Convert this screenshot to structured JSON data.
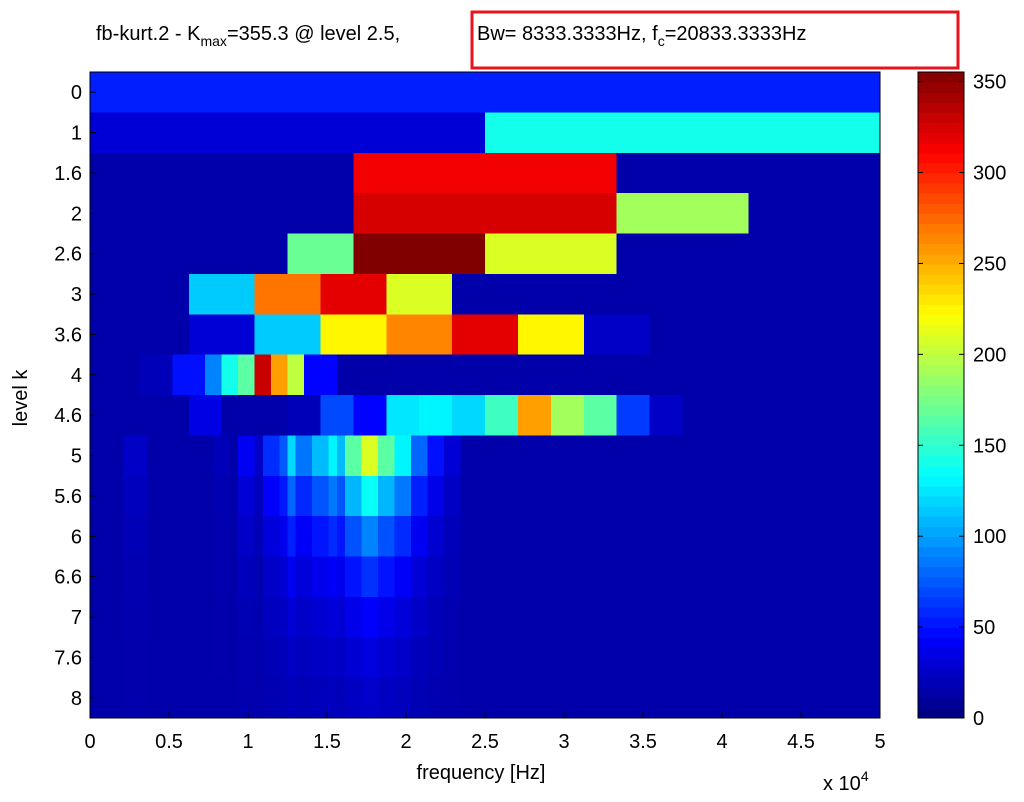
{
  "title": {
    "prefix": "fb-kurt.2 - K",
    "kmax_sub": "max",
    "kmax_value": "=355.3 @ level 2.5,",
    "bw": "Bw= 8333.3333Hz, f",
    "fc_sub": "c",
    "fc_value": "=20833.3333Hz"
  },
  "colors": {
    "highlight_box": "#e8141c",
    "colormap": "jet"
  },
  "chart_data": {
    "type": "heatmap",
    "xlabel": "frequency [Hz]",
    "ylabel": "level k",
    "x_exponent_label": "x 10",
    "x_exponent_power": "4",
    "xlim": [
      0,
      50000
    ],
    "x_ticks": [
      0,
      5000,
      10000,
      15000,
      20000,
      25000,
      30000,
      35000,
      40000,
      45000,
      50000
    ],
    "x_tick_labels": [
      "0",
      "0.5",
      "1",
      "1.5",
      "2",
      "2.5",
      "3",
      "3.5",
      "4",
      "4.5",
      "5"
    ],
    "y_tick_labels": [
      "0",
      "1",
      "1.6",
      "2",
      "2.6",
      "3",
      "3.6",
      "4",
      "4.6",
      "5",
      "5.6",
      "6",
      "6.6",
      "7",
      "7.6",
      "8"
    ],
    "colorbar": {
      "clim": [
        0,
        355.3
      ],
      "ticks": [
        0,
        50,
        100,
        150,
        200,
        250,
        300,
        350
      ],
      "tick_labels": [
        "0",
        "50",
        "100",
        "150",
        "200",
        "250",
        "300",
        "350"
      ]
    },
    "rows": [
      {
        "level": "0",
        "values": [
          55
        ]
      },
      {
        "level": "1",
        "values": [
          30,
          140
        ]
      },
      {
        "level": "1.6",
        "values": [
          15,
          15,
          315,
          315,
          15,
          15
        ]
      },
      {
        "level": "2",
        "values": [
          15,
          15,
          325,
          325,
          190,
          15
        ]
      },
      {
        "level": "2.6",
        "values": [
          15,
          15,
          15,
          170,
          355,
          355,
          210,
          210,
          15,
          15,
          15,
          15
        ]
      },
      {
        "level": "3",
        "values": [
          15,
          15,
          15,
          115,
          115,
          270,
          270,
          320,
          320,
          210,
          210,
          15,
          15,
          15,
          15,
          15,
          15,
          15,
          15,
          15,
          15,
          15,
          15,
          15
        ]
      },
      {
        "level": "3.6",
        "values": [
          15,
          15,
          15,
          30,
          30,
          115,
          115,
          225,
          225,
          265,
          265,
          320,
          320,
          225,
          225,
          25,
          25,
          15,
          15,
          15,
          15,
          15,
          15,
          15
        ]
      },
      {
        "level": "4",
        "values": [
          15,
          15,
          15,
          20,
          20,
          50,
          50,
          90,
          140,
          165,
          330,
          255,
          200,
          45,
          45,
          15,
          15,
          15,
          15,
          15,
          15,
          15,
          15,
          15,
          15,
          15,
          15,
          15,
          15,
          15,
          15,
          15,
          15,
          15,
          15,
          15,
          15,
          15,
          15,
          15,
          15,
          15,
          15,
          15,
          15,
          15,
          15,
          15
        ]
      },
      {
        "level": "4.6",
        "values": [
          15,
          15,
          15,
          15,
          15,
          15,
          35,
          35,
          15,
          15,
          15,
          15,
          20,
          20,
          70,
          70,
          45,
          45,
          125,
          125,
          130,
          130,
          120,
          120,
          155,
          155,
          255,
          255,
          190,
          190,
          165,
          165,
          65,
          65,
          25,
          25,
          15,
          15,
          15,
          15,
          15,
          15,
          15,
          15,
          15,
          15,
          15,
          15
        ]
      },
      {
        "level": "5",
        "values": [
          15,
          15,
          15,
          15,
          25,
          25,
          25,
          15,
          15,
          15,
          15,
          15,
          15,
          15,
          15,
          20,
          20,
          15,
          40,
          40,
          25,
          60,
          60,
          75,
          120,
          85,
          85,
          110,
          110,
          130,
          110,
          165,
          165,
          210,
          210,
          165,
          165,
          130,
          130,
          80,
          80,
          50,
          50,
          30,
          30,
          15,
          15,
          15,
          15,
          15,
          15,
          15,
          15,
          15,
          15,
          15,
          15,
          15,
          15,
          15,
          15,
          15,
          15,
          15,
          15,
          15,
          15,
          15,
          15,
          15,
          15,
          15,
          15,
          15,
          15,
          15,
          15,
          15,
          15,
          15,
          15,
          15,
          15,
          15,
          15,
          15,
          15,
          15,
          15,
          15,
          15,
          15,
          15,
          15,
          15,
          15
        ]
      }
    ]
  }
}
